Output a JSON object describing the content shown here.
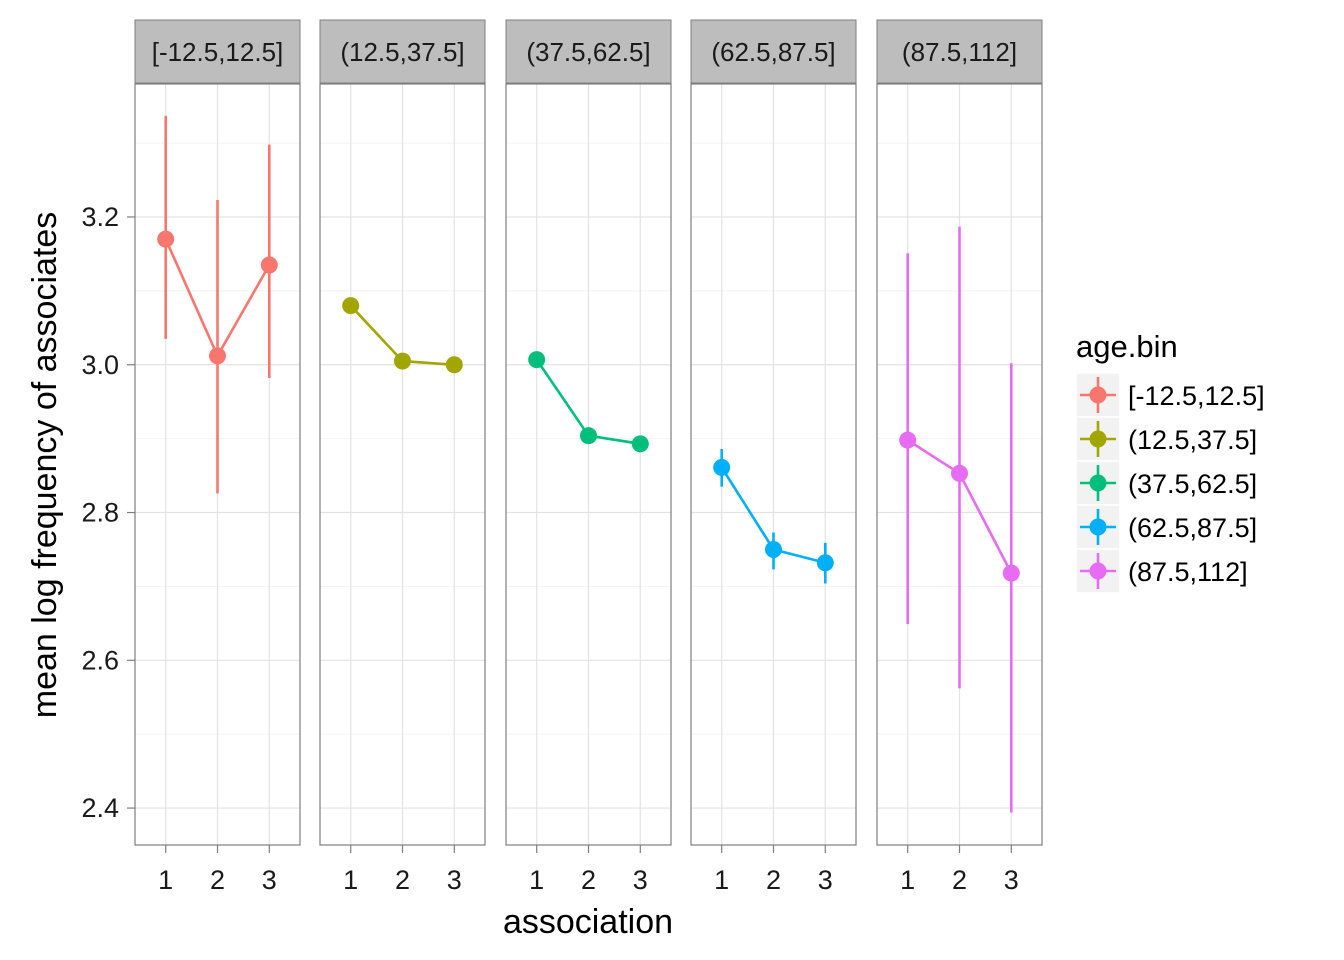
{
  "chart_data": {
    "type": "line",
    "xlabel": "association",
    "ylabel": "mean log frequency of associates",
    "ylim": [
      2.35,
      3.38
    ],
    "yticks": [
      2.4,
      2.6,
      2.8,
      3.0,
      3.2
    ],
    "ytick_labels": [
      "2.4",
      "2.6",
      "2.8",
      "3.0",
      "3.2"
    ],
    "x": [
      1,
      2,
      3
    ],
    "xtick_labels": [
      "1",
      "2",
      "3"
    ],
    "grid": true,
    "error_bars": true,
    "legend": {
      "title": "age.bin",
      "placement": "right"
    },
    "panels": [
      {
        "name": "[-12.5,12.5]",
        "color": "#F8766D",
        "values": [
          3.17,
          3.012,
          3.135
        ],
        "lower": [
          3.035,
          2.826,
          2.982
        ],
        "upper": [
          3.337,
          3.223,
          3.298
        ]
      },
      {
        "name": "(12.5,37.5]",
        "color": "#A3A500",
        "values": [
          3.08,
          3.005,
          3.0
        ],
        "lower": [
          3.08,
          3.005,
          3.0
        ],
        "upper": [
          3.08,
          3.005,
          3.0
        ]
      },
      {
        "name": "(37.5,62.5]",
        "color": "#00BF7D",
        "values": [
          3.007,
          2.904,
          2.893
        ],
        "lower": [
          3.007,
          2.904,
          2.893
        ],
        "upper": [
          3.007,
          2.904,
          2.893
        ]
      },
      {
        "name": "(62.5,87.5]",
        "color": "#00B0F6",
        "values": [
          2.861,
          2.75,
          2.732
        ],
        "lower": [
          2.835,
          2.723,
          2.704
        ],
        "upper": [
          2.886,
          2.773,
          2.759
        ]
      },
      {
        "name": "(87.5,112]",
        "color": "#E76BF3",
        "values": [
          2.898,
          2.853,
          2.718
        ],
        "lower": [
          2.649,
          2.562,
          2.394
        ],
        "upper": [
          3.151,
          3.187,
          3.002
        ]
      }
    ]
  }
}
